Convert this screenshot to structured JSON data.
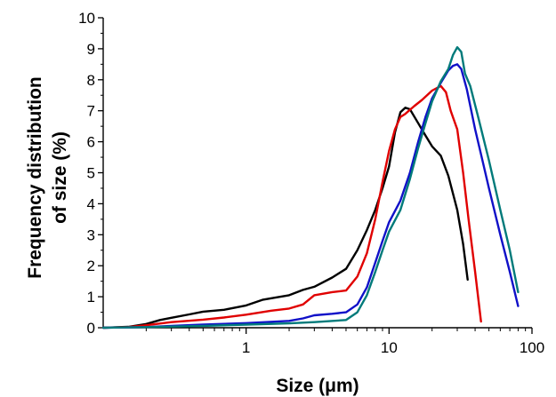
{
  "chart_data": {
    "type": "line",
    "xlabel": "Size (μm)",
    "ylabel_lines": [
      "Frequency distribution",
      "of size (%)"
    ],
    "xscale": "log",
    "xlim": [
      0.1,
      100
    ],
    "ylim": [
      0,
      10
    ],
    "x_ticks": [
      1,
      10,
      100
    ],
    "x_tick_labels": [
      "1",
      "10",
      "100"
    ],
    "y_ticks": [
      0,
      1,
      2,
      3,
      4,
      5,
      6,
      7,
      8,
      9,
      10
    ],
    "y_tick_labels": [
      "0",
      "1",
      "2",
      "3",
      "4",
      "5",
      "6",
      "7",
      "8",
      "9",
      "10"
    ],
    "grid": false,
    "legend": "none",
    "series": [
      {
        "color": "#000000",
        "points": [
          [
            0.1,
            0
          ],
          [
            0.15,
            0.03
          ],
          [
            0.2,
            0.12
          ],
          [
            0.25,
            0.25
          ],
          [
            0.3,
            0.32
          ],
          [
            0.4,
            0.43
          ],
          [
            0.5,
            0.52
          ],
          [
            0.7,
            0.58
          ],
          [
            1.0,
            0.72
          ],
          [
            1.3,
            0.9
          ],
          [
            1.6,
            0.97
          ],
          [
            2.0,
            1.05
          ],
          [
            2.5,
            1.22
          ],
          [
            3.0,
            1.32
          ],
          [
            4.0,
            1.62
          ],
          [
            5.0,
            1.9
          ],
          [
            6.0,
            2.5
          ],
          [
            7.0,
            3.15
          ],
          [
            8.0,
            3.8
          ],
          [
            9.0,
            4.5
          ],
          [
            10.0,
            5.2
          ],
          [
            11.0,
            6.3
          ],
          [
            12.0,
            6.95
          ],
          [
            13.0,
            7.1
          ],
          [
            14.0,
            7.05
          ],
          [
            16.0,
            6.6
          ],
          [
            18.0,
            6.2
          ],
          [
            20.0,
            5.85
          ],
          [
            23.0,
            5.55
          ],
          [
            26.0,
            4.9
          ],
          [
            30.0,
            3.8
          ],
          [
            33.0,
            2.7
          ],
          [
            35.5,
            1.55
          ]
        ]
      },
      {
        "color": "#e00000",
        "points": [
          [
            0.1,
            0
          ],
          [
            0.15,
            0.02
          ],
          [
            0.2,
            0.08
          ],
          [
            0.3,
            0.18
          ],
          [
            0.5,
            0.26
          ],
          [
            0.7,
            0.33
          ],
          [
            1.0,
            0.42
          ],
          [
            1.5,
            0.55
          ],
          [
            2.0,
            0.62
          ],
          [
            2.5,
            0.75
          ],
          [
            3.0,
            1.05
          ],
          [
            4.0,
            1.15
          ],
          [
            5.0,
            1.2
          ],
          [
            6.0,
            1.65
          ],
          [
            7.0,
            2.4
          ],
          [
            8.0,
            3.5
          ],
          [
            9.0,
            4.7
          ],
          [
            10.0,
            5.7
          ],
          [
            11.0,
            6.4
          ],
          [
            12.0,
            6.8
          ],
          [
            13.0,
            6.9
          ],
          [
            15.0,
            7.15
          ],
          [
            17.0,
            7.35
          ],
          [
            20.0,
            7.65
          ],
          [
            23.0,
            7.8
          ],
          [
            25.0,
            7.6
          ],
          [
            27.0,
            7.0
          ],
          [
            30.0,
            6.4
          ],
          [
            33.0,
            5.0
          ],
          [
            36.0,
            3.5
          ],
          [
            40.0,
            1.8
          ],
          [
            44.0,
            0.2
          ]
        ]
      },
      {
        "color": "#1010c8",
        "points": [
          [
            0.1,
            0
          ],
          [
            0.2,
            0.02
          ],
          [
            0.3,
            0.06
          ],
          [
            0.5,
            0.1
          ],
          [
            1.0,
            0.15
          ],
          [
            2.0,
            0.22
          ],
          [
            2.5,
            0.3
          ],
          [
            3.0,
            0.4
          ],
          [
            4.0,
            0.45
          ],
          [
            5.0,
            0.5
          ],
          [
            6.0,
            0.75
          ],
          [
            7.0,
            1.3
          ],
          [
            8.0,
            2.1
          ],
          [
            9.0,
            2.8
          ],
          [
            10.0,
            3.4
          ],
          [
            12.0,
            4.1
          ],
          [
            14.0,
            5.0
          ],
          [
            16.0,
            6.0
          ],
          [
            18.0,
            6.8
          ],
          [
            20.0,
            7.4
          ],
          [
            23.0,
            7.9
          ],
          [
            26.0,
            8.3
          ],
          [
            28.0,
            8.45
          ],
          [
            30.0,
            8.5
          ],
          [
            32.0,
            8.35
          ],
          [
            35.0,
            7.7
          ],
          [
            40.0,
            6.4
          ],
          [
            45.0,
            5.4
          ],
          [
            50.0,
            4.5
          ],
          [
            60.0,
            3.0
          ],
          [
            70.0,
            1.8
          ],
          [
            80.0,
            0.7
          ]
        ]
      },
      {
        "color": "#007a7a",
        "points": [
          [
            0.1,
            0
          ],
          [
            0.2,
            0.02
          ],
          [
            0.5,
            0.06
          ],
          [
            1.0,
            0.1
          ],
          [
            2.0,
            0.14
          ],
          [
            3.0,
            0.18
          ],
          [
            5.0,
            0.25
          ],
          [
            6.0,
            0.5
          ],
          [
            7.0,
            1.05
          ],
          [
            8.0,
            1.8
          ],
          [
            9.0,
            2.5
          ],
          [
            10.0,
            3.1
          ],
          [
            12.0,
            3.8
          ],
          [
            14.0,
            4.8
          ],
          [
            16.0,
            5.8
          ],
          [
            18.0,
            6.6
          ],
          [
            20.0,
            7.3
          ],
          [
            23.0,
            7.95
          ],
          [
            26.0,
            8.35
          ],
          [
            28.0,
            8.8
          ],
          [
            30.0,
            9.05
          ],
          [
            32.0,
            8.9
          ],
          [
            34.0,
            8.2
          ],
          [
            37.0,
            7.8
          ],
          [
            42.0,
            6.8
          ],
          [
            50.0,
            5.4
          ],
          [
            60.0,
            3.8
          ],
          [
            70.0,
            2.5
          ],
          [
            80.0,
            1.15
          ]
        ]
      }
    ]
  }
}
